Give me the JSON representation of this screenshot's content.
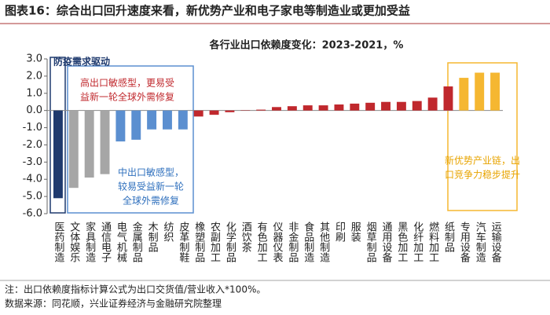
{
  "header": {
    "title": "图表16：综合出口回升速度来看，新优势产业和电子家电等制造业或更加受益"
  },
  "chart_data": {
    "type": "bar",
    "title": "各行业出口依赖度变化：2023-2021，%",
    "categories": [
      "医药制造",
      "文体娱乐",
      "家具制造",
      "通信电子",
      "电气机械",
      "金属制品",
      "木制品",
      "纺织",
      "皮革制鞋",
      "橡塑制品",
      "农副加工",
      "化学制品",
      "酒饮茶",
      "有色加工",
      "仪器仪表",
      "非金制品",
      "食品制造",
      "其他制造",
      "印刷",
      "服装",
      "烟草制品",
      "通用设备",
      "黑色加工",
      "化纤加工",
      "燃料加工",
      "纸制品",
      "专用设备",
      "汽车制造",
      "运输设备"
    ],
    "values": [
      -5.1,
      -4.5,
      -3.9,
      -3.7,
      -1.8,
      -1.7,
      -1.1,
      -1.1,
      -1.1,
      -0.35,
      -0.25,
      -0.1,
      0.02,
      0.05,
      0.2,
      0.25,
      0.3,
      0.3,
      0.35,
      0.4,
      0.45,
      0.5,
      0.5,
      0.55,
      0.75,
      1.4,
      1.9,
      2.2,
      2.2
    ],
    "colors": [
      "#1f3a6e",
      "#a6a6a6",
      "#a6a6a6",
      "#a6a6a6",
      "#5b8fd0",
      "#5b8fd0",
      "#5b8fd0",
      "#5b8fd0",
      "#5b8fd0",
      "#c0282d",
      "#c0282d",
      "#c0282d",
      "#c0282d",
      "#c0282d",
      "#c0282d",
      "#c0282d",
      "#c0282d",
      "#c0282d",
      "#c0282d",
      "#c0282d",
      "#c0282d",
      "#c0282d",
      "#c0282d",
      "#c0282d",
      "#c0282d",
      "#c0282d",
      "#f5b731",
      "#f5b731",
      "#f5b731"
    ],
    "ylim": [
      -6,
      3
    ],
    "yticks": [
      {
        "value": 3,
        "label": "3.0"
      },
      {
        "value": 2,
        "label": "2.0"
      },
      {
        "value": 1,
        "label": "1.0"
      },
      {
        "value": 0,
        "label": "0.0"
      },
      {
        "value": -1,
        "label": "-1.0"
      },
      {
        "value": -2,
        "label": "-2.0"
      },
      {
        "value": -3,
        "label": "-3.0"
      },
      {
        "value": -4,
        "label": "-4.0"
      },
      {
        "value": -5,
        "label": "-5.0"
      },
      {
        "value": -6,
        "label": "-6.0"
      }
    ],
    "annotations": {
      "pandemic": "防疫需求驱动",
      "high": [
        "高出口敏感型，更易受",
        "益新一轮全球外需修复"
      ],
      "mid": [
        "中出口敏感型，",
        "较易受益新一轮",
        "全球外需修复"
      ],
      "new": [
        "新优势产业链，出",
        "口竞争力稳步提升"
      ]
    }
  },
  "footer": {
    "note": "注：出口依赖度指标计算公式为出口交货值/营业收入*100%。",
    "source": "数据来源：同花顺，兴业证券经济与金融研究院整理"
  }
}
